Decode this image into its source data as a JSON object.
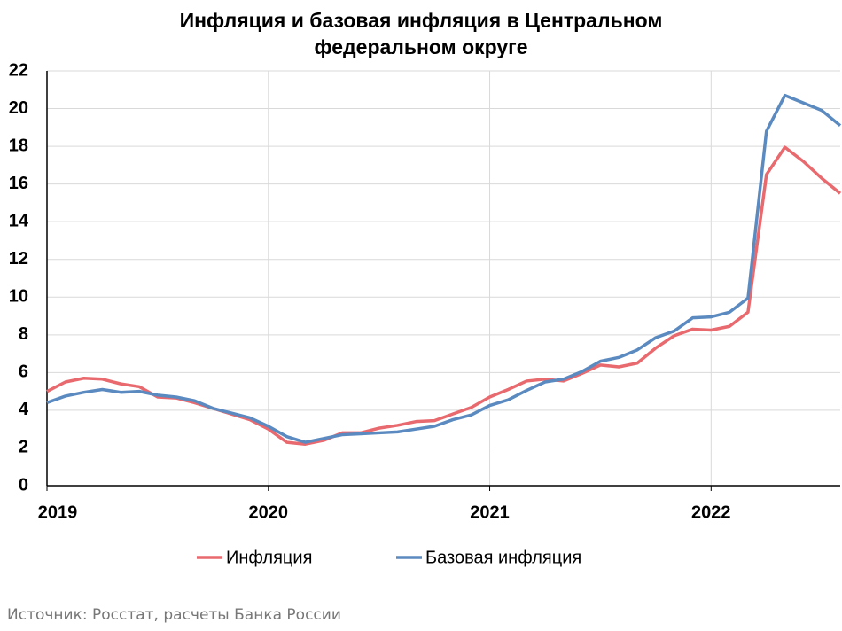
{
  "chart_data": {
    "type": "line",
    "title": "Инфляция и базовая инфляция в Центральном федеральном округе",
    "source": "Источник: Росстат, расчеты Банка России",
    "categories": [
      "2019",
      null,
      null,
      null,
      null,
      null,
      null,
      null,
      null,
      null,
      null,
      null,
      "2020",
      null,
      null,
      null,
      null,
      null,
      null,
      null,
      null,
      null,
      null,
      null,
      "2021",
      null,
      null,
      null,
      null,
      null,
      null,
      null,
      null,
      null,
      null,
      null,
      "2022",
      null,
      null,
      null,
      null,
      null,
      null,
      null
    ],
    "series": [
      {
        "name": "Инфляция",
        "color": "#e8696e",
        "values": [
          5.0,
          5.5,
          5.7,
          5.65,
          5.4,
          5.25,
          4.7,
          4.65,
          4.4,
          4.1,
          3.8,
          3.5,
          3.0,
          2.3,
          2.2,
          2.4,
          2.8,
          2.8,
          3.05,
          3.2,
          3.4,
          3.45,
          3.8,
          4.15,
          4.7,
          5.1,
          5.55,
          5.65,
          5.55,
          5.95,
          6.4,
          6.3,
          6.5,
          7.3,
          7.95,
          8.3,
          8.25,
          8.45,
          9.2,
          16.5,
          17.95,
          17.2,
          16.3,
          15.5
        ]
      },
      {
        "name": "Базовая инфляция",
        "color": "#5b8ac0",
        "values": [
          4.4,
          4.75,
          4.95,
          5.1,
          4.95,
          5.0,
          4.8,
          4.7,
          4.5,
          4.1,
          3.85,
          3.6,
          3.15,
          2.6,
          2.3,
          2.5,
          2.7,
          2.75,
          2.8,
          2.85,
          3.0,
          3.15,
          3.5,
          3.75,
          4.25,
          4.55,
          5.05,
          5.5,
          5.65,
          6.05,
          6.6,
          6.8,
          7.2,
          7.85,
          8.2,
          8.9,
          8.95,
          9.2,
          9.95,
          18.8,
          20.7,
          20.3,
          19.9,
          19.1
        ]
      }
    ],
    "ylim": [
      0,
      22
    ],
    "yticks": [
      0,
      2,
      4,
      6,
      8,
      10,
      12,
      14,
      16,
      18,
      20,
      22
    ],
    "grid": true,
    "legend": "bottom"
  }
}
